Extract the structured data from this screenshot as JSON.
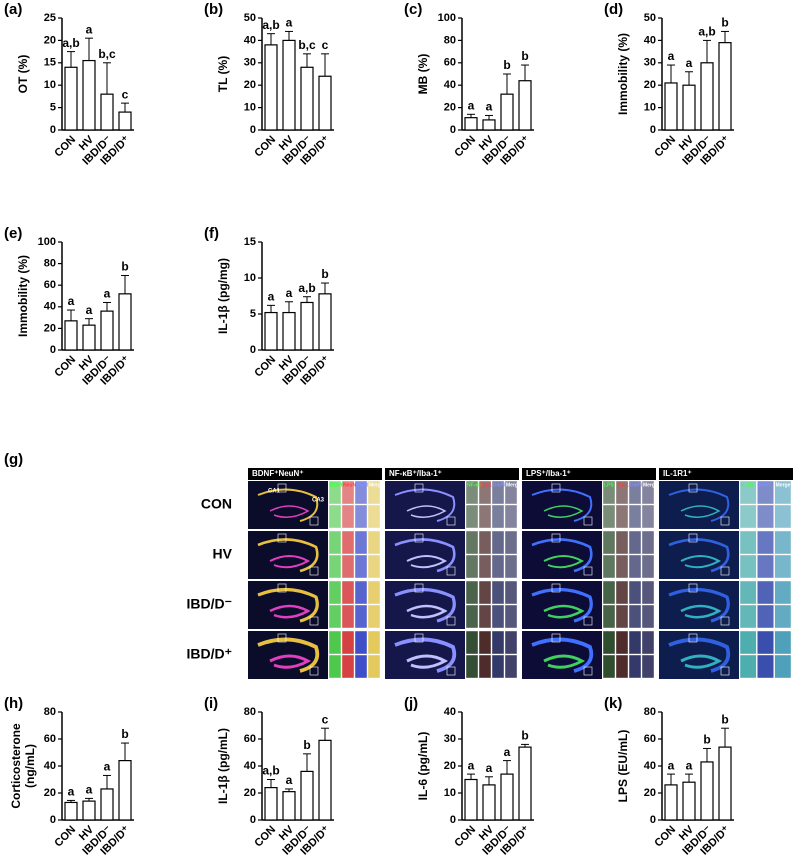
{
  "chart_data": [
    {
      "type": "bar",
      "panel": "(a)",
      "ylabel": [
        "OT (%)"
      ],
      "categories": [
        "CON",
        "HV",
        "IBD/D⁻",
        "IBD/D⁺"
      ],
      "values": [
        14,
        15.5,
        8,
        4
      ],
      "errors": [
        3.5,
        5,
        7,
        2
      ],
      "annotations": [
        "a,b",
        "a",
        "b,c",
        "c"
      ],
      "ylim": [
        0,
        25
      ],
      "yticks": [
        0,
        5,
        10,
        15,
        20,
        25
      ],
      "color": "#ffffff"
    },
    {
      "type": "bar",
      "panel": "(b)",
      "ylabel": [
        "TL (%)"
      ],
      "categories": [
        "CON",
        "HV",
        "IBD/D⁻",
        "IBD/D⁺"
      ],
      "values": [
        38,
        40,
        28,
        24
      ],
      "errors": [
        5,
        4,
        6,
        10
      ],
      "annotations": [
        "a,b",
        "a",
        "b,c",
        "c"
      ],
      "ylim": [
        0,
        50
      ],
      "yticks": [
        0,
        10,
        20,
        30,
        40,
        50
      ],
      "color": "#ffffff"
    },
    {
      "type": "bar",
      "panel": "(c)",
      "ylabel": [
        "MB (%)"
      ],
      "categories": [
        "CON",
        "HV",
        "IBD/D⁻",
        "IBD/D⁺"
      ],
      "values": [
        11,
        9,
        32,
        44
      ],
      "errors": [
        3,
        4,
        18,
        14
      ],
      "annotations": [
        "a",
        "a",
        "b",
        "b"
      ],
      "ylim": [
        0,
        100
      ],
      "yticks": [
        0,
        20,
        40,
        60,
        80,
        100
      ],
      "color": "#ffffff"
    },
    {
      "type": "bar",
      "panel": "(d)",
      "ylabel": [
        "Immobility (%)"
      ],
      "categories": [
        "CON",
        "HV",
        "IBD/D⁻",
        "IBD/D⁺"
      ],
      "values": [
        21,
        20,
        30,
        39
      ],
      "errors": [
        8,
        6,
        10,
        5
      ],
      "annotations": [
        "a",
        "a",
        "a,b",
        "b"
      ],
      "ylim": [
        0,
        50
      ],
      "yticks": [
        0,
        10,
        20,
        30,
        40,
        50
      ],
      "color": "#ffffff"
    },
    {
      "type": "bar",
      "panel": "(e)",
      "ylabel": [
        "Immobility (%)"
      ],
      "categories": [
        "CON",
        "HV",
        "IBD/D⁻",
        "IBD/D⁺"
      ],
      "values": [
        27,
        23,
        36,
        52
      ],
      "errors": [
        10,
        6,
        8,
        17
      ],
      "annotations": [
        "a",
        "a",
        "a",
        "b"
      ],
      "ylim": [
        0,
        100
      ],
      "yticks": [
        0,
        20,
        40,
        60,
        80,
        100
      ],
      "color": "#ffffff"
    },
    {
      "type": "bar",
      "panel": "(f)",
      "ylabel": [
        "IL-1β (pg/mg)"
      ],
      "categories": [
        "CON",
        "HV",
        "IBD/D⁻",
        "IBD/D⁺"
      ],
      "values": [
        5.2,
        5.2,
        6.6,
        7.8
      ],
      "errors": [
        1,
        1.5,
        0.8,
        1.5
      ],
      "annotations": [
        "a",
        "a",
        "a,b",
        "b"
      ],
      "ylim": [
        0,
        15
      ],
      "yticks": [
        0,
        5,
        10,
        15
      ],
      "color": "#ffffff"
    },
    {
      "type": "bar",
      "panel": "(h)",
      "ylabel": [
        "Corticosterone",
        "(ng/mL)"
      ],
      "categories": [
        "CON",
        "HV",
        "IBD/D⁻",
        "IBD/D⁺"
      ],
      "values": [
        13,
        14,
        23,
        44
      ],
      "errors": [
        1.5,
        2,
        10,
        13
      ],
      "annotations": [
        "a",
        "a",
        "a",
        "b"
      ],
      "ylim": [
        0,
        80
      ],
      "yticks": [
        0,
        20,
        40,
        60,
        80
      ],
      "color": "#ffffff"
    },
    {
      "type": "bar",
      "panel": "(i)",
      "ylabel": [
        "IL-1β (pg/mL)"
      ],
      "categories": [
        "CON",
        "HV",
        "IBD/D⁻",
        "IBD/D⁺"
      ],
      "values": [
        24,
        21,
        36,
        59
      ],
      "errors": [
        6,
        2,
        13,
        9
      ],
      "annotations": [
        "a,b",
        "a",
        "b",
        "c"
      ],
      "ylim": [
        0,
        80
      ],
      "yticks": [
        0,
        20,
        40,
        60,
        80
      ],
      "color": "#ffffff"
    },
    {
      "type": "bar",
      "panel": "(j)",
      "ylabel": [
        "IL-6 (pg/mL)"
      ],
      "categories": [
        "CON",
        "HV",
        "IBD/D⁻",
        "IBD/D⁺"
      ],
      "values": [
        15,
        13,
        17,
        27
      ],
      "errors": [
        2,
        3,
        5,
        1
      ],
      "annotations": [
        "a",
        "a",
        "a",
        "b"
      ],
      "ylim": [
        0,
        40
      ],
      "yticks": [
        0,
        10,
        20,
        30,
        40
      ],
      "color": "#ffffff"
    },
    {
      "type": "bar",
      "panel": "(k)",
      "ylabel": [
        "LPS (EU/mL)"
      ],
      "categories": [
        "CON",
        "HV",
        "IBD/D⁻",
        "IBD/D⁺"
      ],
      "values": [
        26,
        28,
        43,
        54
      ],
      "errors": [
        8,
        6,
        10,
        14
      ],
      "annotations": [
        "a",
        "a",
        "b",
        "b"
      ],
      "ylim": [
        0,
        80
      ],
      "yticks": [
        0,
        20,
        40,
        60,
        80
      ],
      "color": "#ffffff"
    }
  ],
  "panel_g": {
    "label": "(g)",
    "headers": [
      "BDNF⁺NeuN⁺",
      "NF-κB⁺/Iba-1⁺",
      "LPS⁺/Iba-1⁺",
      "IL-1R1⁺"
    ],
    "rows": [
      "CON",
      "HV",
      "IBD/D⁻",
      "IBD/D⁺"
    ],
    "channels": [
      [
        "BDNF",
        "NeuN",
        "DAPI",
        "Merge"
      ],
      [
        "NF-κB",
        "Iba-1",
        "DAPI",
        "Merge"
      ],
      [
        "LPS",
        "Iba-1",
        "DAPI",
        "Merge"
      ],
      [
        "IL-1R",
        "DAPI",
        "Merge"
      ]
    ],
    "regions": [
      "CA1",
      "CA3"
    ]
  }
}
